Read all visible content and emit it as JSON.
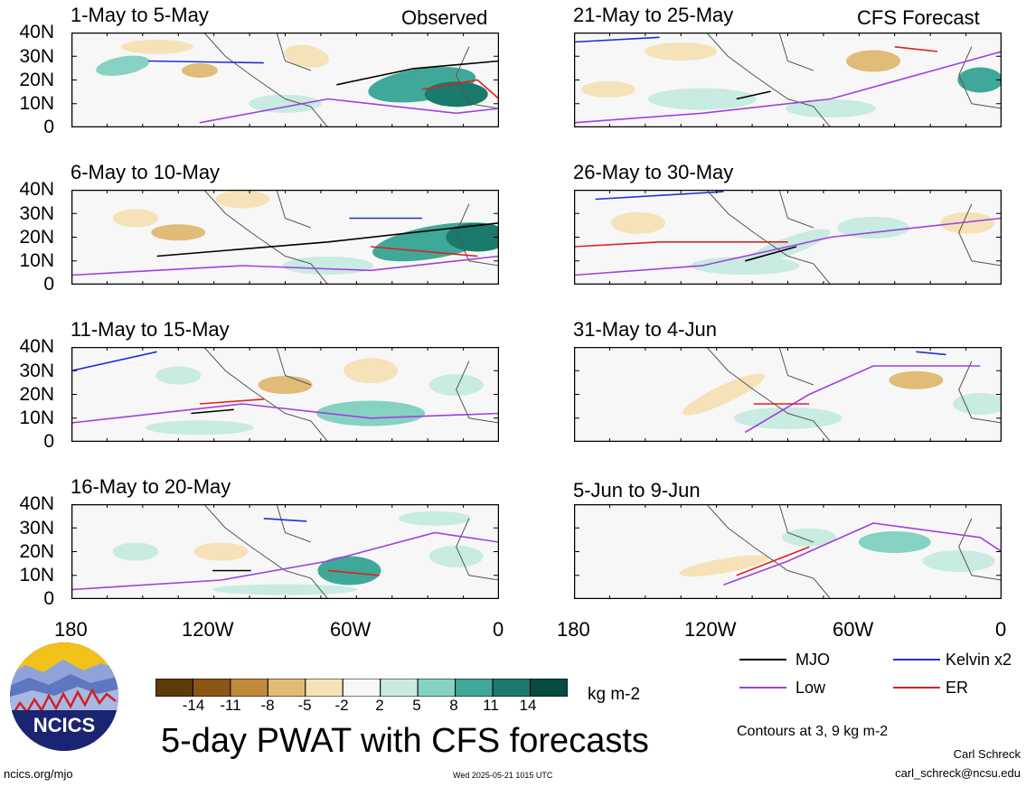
{
  "panels": [
    {
      "title": "1-May to 5-May",
      "tag": "Observed"
    },
    {
      "title": "21-May to 25-May",
      "tag": "CFS Forecast"
    },
    {
      "title": "6-May to 10-May",
      "tag": ""
    },
    {
      "title": "26-May to 30-May",
      "tag": ""
    },
    {
      "title": "11-May to 15-May",
      "tag": ""
    },
    {
      "title": "31-May to 4-Jun",
      "tag": ""
    },
    {
      "title": "16-May to 20-May",
      "tag": ""
    },
    {
      "title": "5-Jun to 9-Jun",
      "tag": ""
    }
  ],
  "y_ticks": [
    "40N",
    "30N",
    "20N",
    "10N",
    "0"
  ],
  "x_ticks": [
    "180",
    "120W",
    "60W",
    "0"
  ],
  "legend": {
    "mjo": "MJO",
    "kelvin": "Kelvin x2",
    "low": "Low",
    "er": "ER",
    "colors": {
      "mjo": "#000000",
      "kelvin": "#1f2fd6",
      "low": "#a040e0",
      "er": "#e02020"
    }
  },
  "colorbar": {
    "ticks": [
      "-14",
      "-11",
      "-8",
      "-5",
      "-2",
      "2",
      "5",
      "8",
      "11",
      "14"
    ],
    "units": "kg m-2",
    "colors": [
      "#5c3a0a",
      "#8a5614",
      "#c08a3c",
      "#e0bc78",
      "#f5e2b8",
      "#f7f7f7",
      "#c8ebe2",
      "#86d2c2",
      "#40a898",
      "#1a7a6c",
      "#064a40"
    ]
  },
  "main_title": "5-day PWAT with CFS forecasts",
  "contours_note": "Contours at 3, 9 kg m-2",
  "author": "Carl Schreck",
  "email": "carl_schreck@ncsu.edu",
  "site": "ncics.org/mjo",
  "timestamp": "Wed 2025-05-21 1015 UTC",
  "logo_text": "NCICS"
}
